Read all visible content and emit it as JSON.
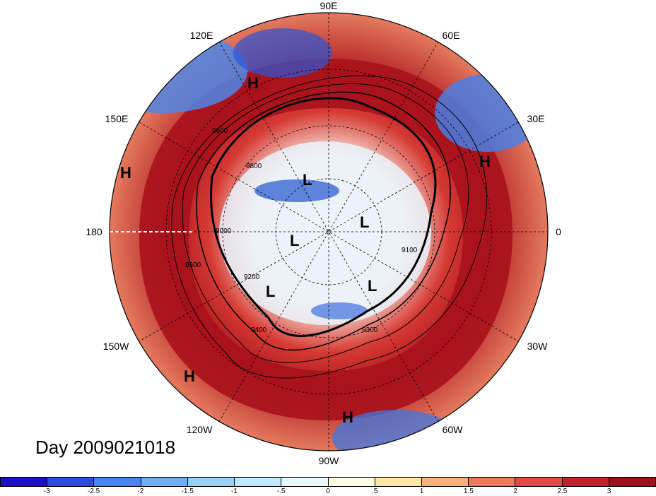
{
  "title": "Day 2009021018",
  "longitude_labels": [
    "90E",
    "60E",
    "30E",
    "0",
    "30W",
    "60W",
    "90W",
    "120W",
    "150W",
    "180",
    "150E",
    "120E"
  ],
  "pressure_systems": [
    {
      "type": "H",
      "region": "East Asia"
    },
    {
      "type": "H",
      "region": "North Pacific west"
    },
    {
      "type": "H",
      "region": "Europe"
    },
    {
      "type": "H",
      "region": "Northeast Pacific"
    },
    {
      "type": "H",
      "region": "Caribbean"
    },
    {
      "type": "L",
      "region": "Siberia"
    },
    {
      "type": "L",
      "region": "Greenland"
    },
    {
      "type": "L",
      "region": "Arctic Canada"
    },
    {
      "type": "L",
      "region": "Alaska"
    },
    {
      "type": "L",
      "region": "Labrador Sea"
    }
  ],
  "contour_labels": [
    "9600",
    "9500",
    "9400",
    "9300",
    "9200",
    "9100",
    "9000",
    "9800"
  ],
  "colorbar": {
    "ticks": [
      "-3",
      "-2.5",
      "-2",
      "-1.5",
      "-1",
      "-.5",
      "0",
      ".5",
      "1",
      "1.5",
      "2",
      "2.5",
      "3"
    ],
    "colors": [
      "#1a10c8",
      "#2c4de0",
      "#4a84ee",
      "#6fb0f4",
      "#95d2fa",
      "#bfeafd",
      "#e8f8ff",
      "#fffbe0",
      "#fde5a6",
      "#f7b27c",
      "#ef7a5a",
      "#e24b40",
      "#c2222a",
      "#9e0f1e"
    ]
  },
  "colors": {
    "warm": "#b0161f",
    "cool": "#3b6fd8",
    "neutral": "#fbf6f0"
  }
}
